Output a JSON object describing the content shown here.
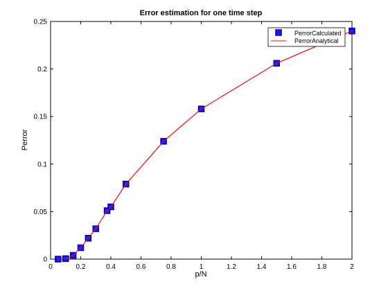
{
  "chart_data": {
    "type": "line",
    "title": "Error estimation for one time step",
    "xlabel": "p/N",
    "ylabel": "Perror",
    "xlim": [
      0,
      2
    ],
    "ylim": [
      0,
      0.25
    ],
    "xticks": [
      0,
      0.2,
      0.4,
      0.6,
      0.8,
      1,
      1.2,
      1.4,
      1.6,
      1.8,
      2
    ],
    "xtick_labels": [
      "0",
      "0.2",
      "0.4",
      "0.6",
      "0.8",
      "1",
      "1.2",
      "1.4",
      "1.6",
      "1.8",
      "2"
    ],
    "yticks": [
      0,
      0.05,
      0.1,
      0.15,
      0.2,
      0.25
    ],
    "ytick_labels": [
      "0",
      "0.05",
      "0.1",
      "0.15",
      "0.2",
      "0.25"
    ],
    "grid": false,
    "legend_position": "top-right",
    "series": [
      {
        "name": "PerrorCalculated",
        "style": "markers",
        "marker": "square",
        "color": "#1a1aff",
        "edge_color": "#0000aa",
        "x": [
          0.05,
          0.1,
          0.15,
          0.2,
          0.25,
          0.3,
          0.375,
          0.4,
          0.5,
          0.75,
          1.0,
          1.5,
          2.0
        ],
        "y": [
          0.0,
          0.0005,
          0.004,
          0.012,
          0.022,
          0.032,
          0.051,
          0.055,
          0.079,
          0.124,
          0.158,
          0.206,
          0.24
        ]
      },
      {
        "name": "PerrorAnalytical",
        "style": "line",
        "color": "#ff0000",
        "x": [
          0.05,
          0.1,
          0.15,
          0.2,
          0.25,
          0.3,
          0.375,
          0.4,
          0.5,
          0.75,
          1.0,
          1.5,
          2.0
        ],
        "y": [
          0.0,
          0.0005,
          0.004,
          0.012,
          0.022,
          0.032,
          0.051,
          0.055,
          0.079,
          0.124,
          0.158,
          0.206,
          0.24
        ]
      }
    ]
  }
}
